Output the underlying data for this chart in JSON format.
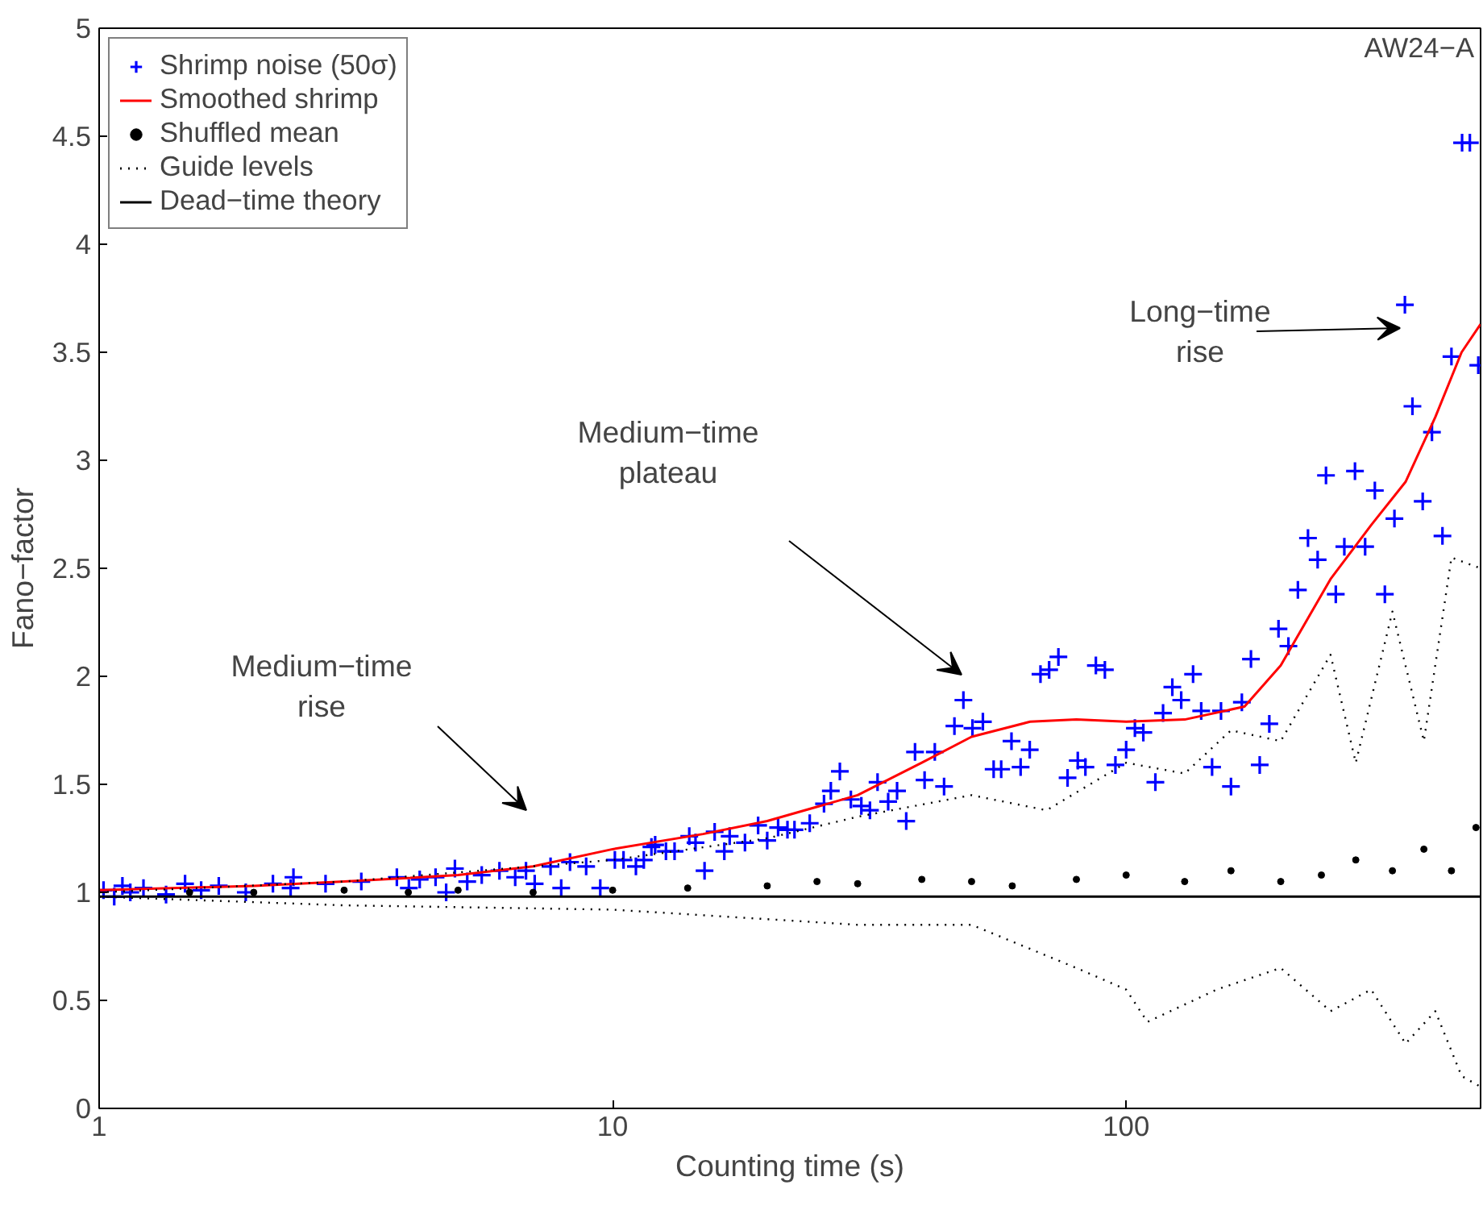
{
  "chart_data": {
    "type": "scatter",
    "xlabel": "Counting time (s)",
    "ylabel": "Fano−factor",
    "log": "x",
    "xlim": [
      1,
      490
    ],
    "xticks": [
      1,
      10,
      100
    ],
    "ylim": [
      0,
      5
    ],
    "yticks": [
      0,
      0.5,
      1,
      1.5,
      2,
      2.5,
      3,
      3.5,
      4,
      4.5,
      5
    ],
    "grid": false,
    "legend": "top left",
    "series": [
      {
        "name": "Shrimp noise (50σ)",
        "marker": "cross",
        "color": "#0000ff",
        "x": [
          1.02,
          1.07,
          1.11,
          1.15,
          1.22,
          1.35,
          1.47,
          1.58,
          1.71,
          1.93,
          2.18,
          2.36,
          2.39,
          2.76,
          3.24,
          3.8,
          4.01,
          4.21,
          4.52,
          4.74,
          4.93,
          5.21,
          5.56,
          6.02,
          6.46,
          6.78,
          7.05,
          7.57,
          7.94,
          8.26,
          8.88,
          9.46,
          10.1,
          10.5,
          11.1,
          11.5,
          11.9,
          12.1,
          12.7,
          13.2,
          14.1,
          14.5,
          15.1,
          15.8,
          16.5,
          16.9,
          18.1,
          19.2,
          20.0,
          21.0,
          21.9,
          22.6,
          24.2,
          25.8,
          26.6,
          27.7,
          29.1,
          30.5,
          31.7,
          32.8,
          34.4,
          35.8,
          37.3,
          38.8,
          40.5,
          42.4,
          44.2,
          46.3,
          48.2,
          50.2,
          52.6,
          55.2,
          57.1,
          59.8,
          62.3,
          64.9,
          68.1,
          70.8,
          73.8,
          76.9,
          80.5,
          83.3,
          87.3,
          90.9,
          95.3,
          100,
          104,
          108,
          114,
          118,
          123,
          128,
          135,
          140,
          147,
          153,
          160,
          168,
          175,
          182,
          190,
          198,
          207,
          216,
          226,
          236,
          245,
          256,
          266,
          279,
          292,
          305,
          319,
          333,
          349,
          361,
          378,
          394,
          413,
          430,
          451,
          467,
          485
        ],
        "values": [
          1.01,
          0.98,
          1.03,
          1.0,
          1.02,
          0.99,
          1.04,
          1.01,
          1.03,
          1.0,
          1.04,
          1.02,
          1.07,
          1.04,
          1.05,
          1.07,
          1.02,
          1.06,
          1.07,
          1.0,
          1.11,
          1.05,
          1.08,
          1.1,
          1.07,
          1.1,
          1.04,
          1.12,
          1.02,
          1.14,
          1.12,
          1.02,
          1.15,
          1.15,
          1.12,
          1.15,
          1.21,
          1.22,
          1.19,
          1.19,
          1.26,
          1.23,
          1.1,
          1.28,
          1.19,
          1.26,
          1.23,
          1.31,
          1.24,
          1.3,
          1.29,
          1.29,
          1.32,
          1.41,
          1.47,
          1.56,
          1.43,
          1.4,
          1.38,
          1.51,
          1.42,
          1.47,
          1.33,
          1.65,
          1.52,
          1.65,
          1.49,
          1.77,
          1.89,
          1.76,
          1.79,
          1.57,
          1.57,
          1.7,
          1.58,
          1.66,
          2.01,
          2.03,
          2.09,
          1.53,
          1.61,
          1.58,
          2.05,
          2.03,
          1.59,
          1.66,
          1.76,
          1.74,
          1.51,
          1.83,
          1.95,
          1.89,
          2.01,
          1.84,
          1.58,
          1.84,
          1.49,
          1.88,
          2.08,
          1.59,
          1.78,
          2.22,
          2.14,
          2.4,
          2.64,
          2.54,
          2.93,
          2.38,
          2.6,
          2.95,
          2.6,
          2.86,
          2.38,
          2.73,
          3.72,
          3.25,
          2.81,
          3.13,
          2.65,
          3.48,
          4.47,
          4.47,
          3.44
        ]
      },
      {
        "name": "Smoothed shrimp",
        "type": "line",
        "color": "#ff0000",
        "line_style": "solid",
        "x": [
          1,
          2,
          3,
          5,
          7,
          10,
          15,
          20,
          30,
          40,
          50,
          65,
          80,
          100,
          130,
          170,
          200,
          250,
          300,
          350,
          400,
          450,
          490
        ],
        "values": [
          1.01,
          1.03,
          1.05,
          1.08,
          1.12,
          1.2,
          1.27,
          1.33,
          1.45,
          1.6,
          1.72,
          1.79,
          1.8,
          1.79,
          1.8,
          1.86,
          2.05,
          2.45,
          2.7,
          2.9,
          3.2,
          3.5,
          3.63
        ]
      },
      {
        "name": "Shuffled mean",
        "marker": "circle",
        "color": "#000000",
        "x": [
          1.5,
          2,
          3,
          4,
          5,
          7,
          10,
          14,
          20,
          25,
          30,
          40,
          50,
          60,
          80,
          100,
          130,
          160,
          200,
          240,
          280,
          330,
          380,
          430,
          480
        ],
        "values": [
          1.0,
          1.0,
          1.01,
          1.0,
          1.01,
          1.0,
          1.01,
          1.02,
          1.03,
          1.05,
          1.04,
          1.06,
          1.05,
          1.03,
          1.06,
          1.08,
          1.05,
          1.1,
          1.05,
          1.08,
          1.15,
          1.1,
          1.2,
          1.1,
          1.3
        ]
      },
      {
        "name": "Guide levels",
        "type": "line",
        "color": "#000000",
        "line_style": "dotted",
        "x": [
          1,
          3,
          10,
          20,
          30,
          50,
          70,
          100,
          130,
          160,
          200,
          250,
          280,
          330,
          380,
          430,
          490
        ],
        "values": [
          1.0,
          1.05,
          1.15,
          1.25,
          1.35,
          1.45,
          1.38,
          1.6,
          1.55,
          1.75,
          1.7,
          2.1,
          1.6,
          2.3,
          1.7,
          2.55,
          2.5
        ]
      },
      {
        "type": "line",
        "color": "#000000",
        "line_style": "dotted",
        "x": [
          1,
          3,
          10,
          30,
          50,
          80,
          100,
          110,
          150,
          200,
          250,
          300,
          350,
          400,
          450,
          490
        ],
        "values": [
          0.98,
          0.94,
          0.92,
          0.85,
          0.85,
          0.65,
          0.55,
          0.4,
          0.55,
          0.65,
          0.45,
          0.55,
          0.3,
          0.45,
          0.15,
          0.1
        ]
      },
      {
        "name": "Dead−time theory",
        "type": "line",
        "color": "#000000",
        "line_style": "solid",
        "x": [
          1,
          490
        ],
        "values": [
          0.98,
          0.98
        ]
      }
    ],
    "annotations": [
      "AW24−A",
      "Medium−time\nrise",
      "Medium−time\nplateau",
      "Long−time\nrise"
    ]
  }
}
